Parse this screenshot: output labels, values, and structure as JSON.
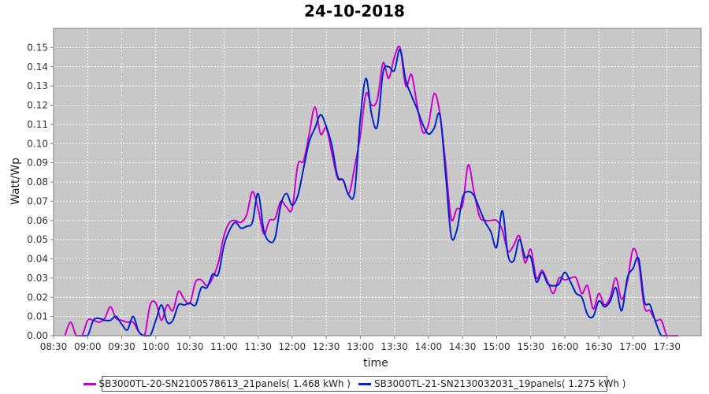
{
  "chart_data": {
    "type": "line",
    "title": "24-10-2018",
    "xlabel": "time",
    "ylabel": "Watt/Wp",
    "ylim": [
      0,
      0.16
    ],
    "yticks": [
      "0.00",
      "0.01",
      "0.02",
      "0.03",
      "0.04",
      "0.05",
      "0.06",
      "0.07",
      "0.08",
      "0.09",
      "0.10",
      "0.11",
      "0.12",
      "0.13",
      "0.14",
      "0.15"
    ],
    "xticks": [
      "08:30",
      "09:00",
      "09:30",
      "10:00",
      "10:30",
      "11:00",
      "11:30",
      "12:00",
      "12:30",
      "13:00",
      "13:30",
      "14:00",
      "14:30",
      "15:00",
      "15:30",
      "16:00",
      "16:30",
      "17:00",
      "17:30"
    ],
    "xlim": [
      "08:30",
      "18:00"
    ],
    "grid": true,
    "legend_position": "bottom",
    "series": [
      {
        "name": "SB3000TL-20-SN2100578613_21panels( 1.468 kWh )",
        "color": "#cc00cc",
        "points": [
          [
            "08:40",
            0.0
          ],
          [
            "08:45",
            0.007
          ],
          [
            "08:50",
            0.0
          ],
          [
            "08:55",
            0.0
          ],
          [
            "09:00",
            0.008
          ],
          [
            "09:05",
            0.008
          ],
          [
            "09:10",
            0.007
          ],
          [
            "09:15",
            0.009
          ],
          [
            "09:20",
            0.015
          ],
          [
            "09:25",
            0.009
          ],
          [
            "09:30",
            0.008
          ],
          [
            "09:35",
            0.007
          ],
          [
            "09:40",
            0.007
          ],
          [
            "09:45",
            0.002
          ],
          [
            "09:50",
            0.0
          ],
          [
            "09:55",
            0.016
          ],
          [
            "10:00",
            0.017
          ],
          [
            "10:05",
            0.008
          ],
          [
            "10:10",
            0.016
          ],
          [
            "10:15",
            0.013
          ],
          [
            "10:20",
            0.023
          ],
          [
            "10:25",
            0.019
          ],
          [
            "10:30",
            0.017
          ],
          [
            "10:35",
            0.028
          ],
          [
            "10:40",
            0.029
          ],
          [
            "10:45",
            0.026
          ],
          [
            "10:50",
            0.03
          ],
          [
            "10:55",
            0.038
          ],
          [
            "11:00",
            0.052
          ],
          [
            "11:05",
            0.059
          ],
          [
            "11:10",
            0.06
          ],
          [
            "11:15",
            0.059
          ],
          [
            "11:20",
            0.063
          ],
          [
            "11:25",
            0.075
          ],
          [
            "11:30",
            0.066
          ],
          [
            "11:35",
            0.053
          ],
          [
            "11:40",
            0.06
          ],
          [
            "11:45",
            0.061
          ],
          [
            "11:50",
            0.07
          ],
          [
            "11:55",
            0.067
          ],
          [
            "12:00",
            0.066
          ],
          [
            "12:05",
            0.089
          ],
          [
            "12:10",
            0.091
          ],
          [
            "12:15",
            0.105
          ],
          [
            "12:20",
            0.119
          ],
          [
            "12:25",
            0.105
          ],
          [
            "12:30",
            0.108
          ],
          [
            "12:35",
            0.095
          ],
          [
            "12:40",
            0.082
          ],
          [
            "12:45",
            0.081
          ],
          [
            "12:50",
            0.074
          ],
          [
            "12:55",
            0.088
          ],
          [
            "13:00",
            0.104
          ],
          [
            "13:05",
            0.126
          ],
          [
            "13:10",
            0.12
          ],
          [
            "13:15",
            0.123
          ],
          [
            "13:20",
            0.142
          ],
          [
            "13:25",
            0.134
          ],
          [
            "13:30",
            0.145
          ],
          [
            "13:35",
            0.15
          ],
          [
            "13:40",
            0.13
          ],
          [
            "13:45",
            0.136
          ],
          [
            "13:50",
            0.12
          ],
          [
            "13:55",
            0.106
          ],
          [
            "14:00",
            0.11
          ],
          [
            "14:05",
            0.126
          ],
          [
            "14:10",
            0.116
          ],
          [
            "14:15",
            0.09
          ],
          [
            "14:20",
            0.061
          ],
          [
            "14:25",
            0.066
          ],
          [
            "14:30",
            0.068
          ],
          [
            "14:35",
            0.089
          ],
          [
            "14:40",
            0.075
          ],
          [
            "14:45",
            0.062
          ],
          [
            "14:50",
            0.06
          ],
          [
            "14:55",
            0.06
          ],
          [
            "15:00",
            0.06
          ],
          [
            "15:05",
            0.055
          ],
          [
            "15:10",
            0.044
          ],
          [
            "15:15",
            0.047
          ],
          [
            "15:20",
            0.052
          ],
          [
            "15:25",
            0.038
          ],
          [
            "15:30",
            0.045
          ],
          [
            "15:35",
            0.03
          ],
          [
            "15:40",
            0.034
          ],
          [
            "15:45",
            0.028
          ],
          [
            "15:50",
            0.022
          ],
          [
            "15:55",
            0.03
          ],
          [
            "16:00",
            0.029
          ],
          [
            "16:05",
            0.03
          ],
          [
            "16:10",
            0.03
          ],
          [
            "16:15",
            0.022
          ],
          [
            "16:20",
            0.026
          ],
          [
            "16:25",
            0.014
          ],
          [
            "16:30",
            0.022
          ],
          [
            "16:35",
            0.016
          ],
          [
            "16:40",
            0.02
          ],
          [
            "16:45",
            0.03
          ],
          [
            "16:50",
            0.019
          ],
          [
            "16:55",
            0.028
          ],
          [
            "17:00",
            0.045
          ],
          [
            "17:05",
            0.038
          ],
          [
            "17:10",
            0.015
          ],
          [
            "17:15",
            0.013
          ],
          [
            "17:20",
            0.008
          ],
          [
            "17:25",
            0.008
          ],
          [
            "17:30",
            0.0
          ],
          [
            "17:35",
            0.0
          ],
          [
            "17:40",
            0.0
          ]
        ]
      },
      {
        "name": "SB3000TL-21-SN2130032031_19panels( 1.275 kWh )",
        "color": "#0022cc",
        "points": [
          [
            "08:55",
            0.0
          ],
          [
            "09:00",
            0.0
          ],
          [
            "09:05",
            0.008
          ],
          [
            "09:10",
            0.009
          ],
          [
            "09:15",
            0.008
          ],
          [
            "09:20",
            0.008
          ],
          [
            "09:25",
            0.01
          ],
          [
            "09:30",
            0.006
          ],
          [
            "09:35",
            0.003
          ],
          [
            "09:40",
            0.01
          ],
          [
            "09:45",
            0.002
          ],
          [
            "09:50",
            0.0
          ],
          [
            "09:55",
            0.0
          ],
          [
            "10:00",
            0.008
          ],
          [
            "10:05",
            0.016
          ],
          [
            "10:10",
            0.007
          ],
          [
            "10:15",
            0.008
          ],
          [
            "10:20",
            0.016
          ],
          [
            "10:25",
            0.016
          ],
          [
            "10:30",
            0.017
          ],
          [
            "10:35",
            0.016
          ],
          [
            "10:40",
            0.025
          ],
          [
            "10:45",
            0.025
          ],
          [
            "10:50",
            0.032
          ],
          [
            "10:55",
            0.032
          ],
          [
            "11:00",
            0.047
          ],
          [
            "11:05",
            0.055
          ],
          [
            "11:10",
            0.059
          ],
          [
            "11:15",
            0.056
          ],
          [
            "11:20",
            0.057
          ],
          [
            "11:25",
            0.059
          ],
          [
            "11:30",
            0.074
          ],
          [
            "11:35",
            0.055
          ],
          [
            "11:40",
            0.049
          ],
          [
            "11:45",
            0.051
          ],
          [
            "11:50",
            0.068
          ],
          [
            "11:55",
            0.074
          ],
          [
            "12:00",
            0.068
          ],
          [
            "12:05",
            0.073
          ],
          [
            "12:10",
            0.087
          ],
          [
            "12:15",
            0.101
          ],
          [
            "12:20",
            0.108
          ],
          [
            "12:25",
            0.115
          ],
          [
            "12:30",
            0.109
          ],
          [
            "12:35",
            0.099
          ],
          [
            "12:40",
            0.083
          ],
          [
            "12:45",
            0.081
          ],
          [
            "12:50",
            0.073
          ],
          [
            "12:55",
            0.075
          ],
          [
            "13:00",
            0.113
          ],
          [
            "13:05",
            0.134
          ],
          [
            "13:10",
            0.115
          ],
          [
            "13:15",
            0.109
          ],
          [
            "13:20",
            0.137
          ],
          [
            "13:25",
            0.14
          ],
          [
            "13:30",
            0.138
          ],
          [
            "13:35",
            0.149
          ],
          [
            "13:40",
            0.133
          ],
          [
            "13:45",
            0.125
          ],
          [
            "13:50",
            0.118
          ],
          [
            "13:55",
            0.11
          ],
          [
            "14:00",
            0.105
          ],
          [
            "14:05",
            0.108
          ],
          [
            "14:10",
            0.115
          ],
          [
            "14:15",
            0.085
          ],
          [
            "14:20",
            0.052
          ],
          [
            "14:25",
            0.055
          ],
          [
            "14:30",
            0.072
          ],
          [
            "14:35",
            0.075
          ],
          [
            "14:40",
            0.073
          ],
          [
            "14:45",
            0.066
          ],
          [
            "14:50",
            0.059
          ],
          [
            "14:55",
            0.054
          ],
          [
            "15:00",
            0.046
          ],
          [
            "15:05",
            0.065
          ],
          [
            "15:10",
            0.042
          ],
          [
            "15:15",
            0.039
          ],
          [
            "15:20",
            0.05
          ],
          [
            "15:25",
            0.041
          ],
          [
            "15:30",
            0.041
          ],
          [
            "15:35",
            0.028
          ],
          [
            "15:40",
            0.033
          ],
          [
            "15:45",
            0.027
          ],
          [
            "15:50",
            0.026
          ],
          [
            "15:55",
            0.027
          ],
          [
            "16:00",
            0.033
          ],
          [
            "16:05",
            0.028
          ],
          [
            "16:10",
            0.022
          ],
          [
            "16:15",
            0.02
          ],
          [
            "16:20",
            0.011
          ],
          [
            "16:25",
            0.01
          ],
          [
            "16:30",
            0.018
          ],
          [
            "16:35",
            0.015
          ],
          [
            "16:40",
            0.018
          ],
          [
            "16:45",
            0.025
          ],
          [
            "16:50",
            0.013
          ],
          [
            "16:55",
            0.03
          ],
          [
            "17:00",
            0.035
          ],
          [
            "17:05",
            0.04
          ],
          [
            "17:10",
            0.018
          ],
          [
            "17:15",
            0.016
          ],
          [
            "17:20",
            0.007
          ],
          [
            "17:25",
            0.0
          ],
          [
            "17:30",
            0.0
          ]
        ]
      }
    ]
  }
}
